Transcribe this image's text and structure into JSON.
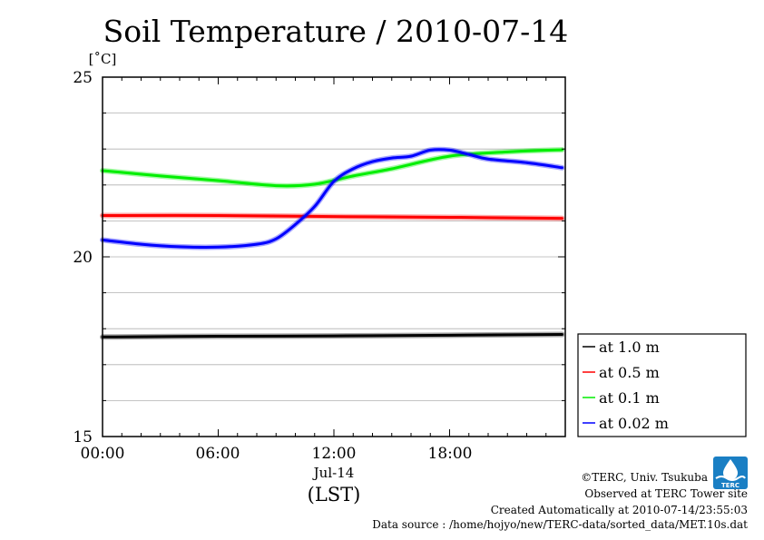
{
  "chart_data": {
    "type": "line",
    "title": "Soil Temperature / 2010-07-14",
    "ylabel": "[˚C]",
    "xlabel": "(LST)",
    "date_label": "Jul-14",
    "ylim": [
      15,
      25
    ],
    "y_ticks": [
      "15",
      "20",
      "25"
    ],
    "xlim": [
      "00:00",
      "24:00"
    ],
    "x_ticks": [
      "00:00",
      "06:00",
      "12:00",
      "18:00"
    ],
    "grid": true,
    "legend_position": "right",
    "series": [
      {
        "name": "at 1.0 m",
        "color": "#000000",
        "points": [
          [
            "00:00",
            17.77
          ],
          [
            "06:00",
            17.79
          ],
          [
            "12:00",
            17.8
          ],
          [
            "18:00",
            17.82
          ],
          [
            "23:50",
            17.84
          ]
        ]
      },
      {
        "name": "at 0.5 m",
        "color": "#ff0000",
        "points": [
          [
            "00:00",
            21.15
          ],
          [
            "06:00",
            21.15
          ],
          [
            "12:00",
            21.12
          ],
          [
            "18:00",
            21.1
          ],
          [
            "23:50",
            21.07
          ]
        ]
      },
      {
        "name": "at 0.1 m",
        "color": "#00ee00",
        "points": [
          [
            "00:00",
            22.4
          ],
          [
            "03:00",
            22.25
          ],
          [
            "06:00",
            22.12
          ],
          [
            "09:00",
            21.98
          ],
          [
            "11:00",
            22.02
          ],
          [
            "13:00",
            22.25
          ],
          [
            "15:00",
            22.45
          ],
          [
            "18:00",
            22.8
          ],
          [
            "21:00",
            22.92
          ],
          [
            "23:50",
            22.98
          ]
        ]
      },
      {
        "name": "at 0.02 m",
        "color": "#0000ff",
        "points": [
          [
            "00:00",
            20.47
          ],
          [
            "02:00",
            20.35
          ],
          [
            "04:00",
            20.28
          ],
          [
            "06:00",
            20.27
          ],
          [
            "08:00",
            20.35
          ],
          [
            "09:00",
            20.5
          ],
          [
            "10:00",
            20.9
          ],
          [
            "11:00",
            21.4
          ],
          [
            "12:00",
            22.1
          ],
          [
            "13:00",
            22.45
          ],
          [
            "14:00",
            22.65
          ],
          [
            "15:00",
            22.75
          ],
          [
            "16:00",
            22.8
          ],
          [
            "17:00",
            22.97
          ],
          [
            "18:00",
            22.97
          ],
          [
            "19:00",
            22.85
          ],
          [
            "20:00",
            22.72
          ],
          [
            "22:00",
            22.62
          ],
          [
            "23:50",
            22.48
          ]
        ]
      }
    ]
  },
  "credits": {
    "copyright": "©TERC, Univ. Tsukuba",
    "site": "Observed at TERC Tower site",
    "created": "Created Automatically at 2010-07-14/23:55:03",
    "source": "Data source : /home/hojyo/new/TERC-data/sorted_data/MET.10s.dat"
  },
  "logo": {
    "text": "TERC",
    "color": "#1a7fc4"
  }
}
